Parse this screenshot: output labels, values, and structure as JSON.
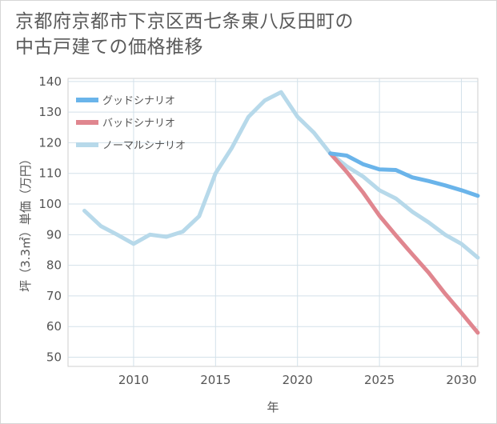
{
  "title_line1": "京都府京都市下京区西七条東八反田町の",
  "title_line2": "中古戸建ての価格推移",
  "chart_data": {
    "type": "line",
    "title": "京都府京都市下京区西七条東八反田町の中古戸建ての価格推移",
    "xlabel": "年",
    "ylabel": "坪（3.3㎡）単価（万円）",
    "xlim": [
      2006,
      2031
    ],
    "ylim": [
      47,
      141
    ],
    "xticks": [
      2010,
      2015,
      2020,
      2025,
      2030
    ],
    "yticks": [
      50,
      60,
      70,
      80,
      90,
      100,
      110,
      120,
      130,
      140
    ],
    "legend_position": "top-left",
    "series": [
      {
        "name": "グッドシナリオ",
        "color": "#6ab4ea",
        "x": [
          2022,
          2023,
          2024,
          2025,
          2026,
          2027,
          2028,
          2029,
          2030,
          2031
        ],
        "y": [
          116.5,
          115.8,
          113,
          111.3,
          111.1,
          108.7,
          107.5,
          106.1,
          104.5,
          102.7
        ]
      },
      {
        "name": "バッドシナリオ",
        "color": "#e0868f",
        "x": [
          2022,
          2023,
          2024,
          2025,
          2026,
          2027,
          2028,
          2029,
          2030,
          2031
        ],
        "y": [
          116.5,
          110.5,
          103.8,
          96.2,
          89.8,
          83.6,
          77.6,
          70.8,
          64.5,
          58
        ]
      },
      {
        "name": "ノーマルシナリオ",
        "color": "#b7d9ea",
        "x": [
          2007,
          2008,
          2009,
          2010,
          2011,
          2012,
          2013,
          2014,
          2015,
          2016,
          2017,
          2018,
          2019,
          2020,
          2021,
          2022,
          2023,
          2024,
          2025,
          2026,
          2027,
          2028,
          2029,
          2030,
          2031
        ],
        "y": [
          97.8,
          92.8,
          90,
          87,
          90,
          89.3,
          91,
          96,
          110,
          118.4,
          128.4,
          133.8,
          136.5,
          128.5,
          123.3,
          116.5,
          112.3,
          109,
          104.5,
          101.8,
          97.5,
          94,
          90,
          87,
          82.5
        ]
      }
    ]
  }
}
